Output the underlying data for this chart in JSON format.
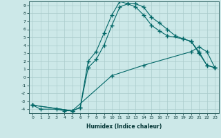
{
  "xlabel": "Humidex (Indice chaleur)",
  "background_color": "#cce8e8",
  "grid_color": "#aacccc",
  "line_color": "#006666",
  "xlim": [
    -0.5,
    23.5
  ],
  "ylim": [
    -4.5,
    9.5
  ],
  "xtick_labels": [
    "0",
    "1",
    "2",
    "3",
    "4",
    "5",
    "6",
    "7",
    "8",
    "9",
    "10",
    "11",
    "12",
    "13",
    "14",
    "15",
    "16",
    "17",
    "18",
    "19",
    "20",
    "21",
    "22",
    "23"
  ],
  "ytick_labels": [
    "-4",
    "-3",
    "-2",
    "-1",
    "0",
    "1",
    "2",
    "3",
    "4",
    "5",
    "6",
    "7",
    "8",
    "9"
  ],
  "curve1_x": [
    0,
    1,
    3,
    4,
    5,
    6,
    7,
    8,
    9,
    10,
    11,
    12,
    13,
    14,
    15,
    16,
    17,
    19,
    20,
    21,
    22,
    23
  ],
  "curve1_y": [
    -3.5,
    -4,
    -4,
    -4.2,
    -4.2,
    -3.8,
    1.2,
    2.2,
    4.0,
    6.5,
    8.8,
    9.2,
    8.8,
    7.8,
    6.5,
    5.8,
    5.2,
    4.8,
    4.5,
    3.0,
    1.5,
    1.2
  ],
  "curve2_x": [
    0,
    5,
    6,
    7,
    8,
    9,
    10,
    11,
    12,
    13,
    14,
    15,
    16,
    17,
    18,
    19,
    20,
    21,
    22,
    23
  ],
  "curve2_y": [
    -3.5,
    -4.2,
    -3.8,
    2.0,
    3.2,
    5.5,
    7.8,
    9.5,
    9.2,
    9.2,
    8.8,
    7.5,
    6.8,
    6.0,
    5.2,
    4.8,
    4.5,
    3.2,
    1.5,
    1.2
  ],
  "curve3_x": [
    0,
    5,
    10,
    14,
    20,
    21,
    22,
    23
  ],
  "curve3_y": [
    -3.5,
    -4.2,
    0.2,
    1.5,
    3.2,
    3.8,
    3.2,
    1.2
  ]
}
